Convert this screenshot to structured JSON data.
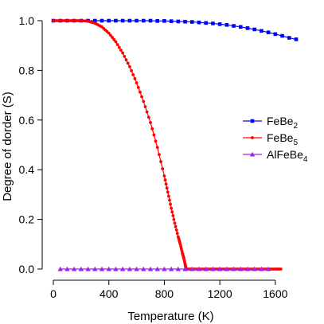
{
  "chart_data": {
    "type": "line",
    "xlabel": "Temperature (K)",
    "ylabel": "Degree of dorder (S)",
    "xlim": [
      0,
      1750
    ],
    "ylim": [
      0,
      1.0
    ],
    "xticks": [
      0,
      400,
      800,
      1200,
      1600
    ],
    "xtick_labels": [
      "0",
      "400",
      "800",
      "1200",
      "1600"
    ],
    "yticks": [
      0,
      0.2,
      0.4,
      0.6,
      0.8,
      1.0
    ],
    "ytick_labels": [
      "0.0",
      "0.2",
      "0.4",
      "0.6",
      "0.8",
      "1.0"
    ],
    "grid": false,
    "legend_position": "right",
    "series": [
      {
        "name": "FeBe",
        "subscript": "2",
        "color": "#0000ff",
        "marker": "square",
        "x": [
          0,
          50,
          100,
          150,
          200,
          250,
          300,
          350,
          400,
          450,
          500,
          550,
          600,
          650,
          700,
          750,
          800,
          850,
          900,
          950,
          1000,
          1050,
          1100,
          1150,
          1200,
          1250,
          1300,
          1350,
          1400,
          1450,
          1500,
          1550,
          1600,
          1650,
          1700,
          1750
        ],
        "y": [
          1.0,
          1.0,
          1.0,
          1.0,
          1.0,
          1.0,
          1.0,
          1.0,
          1.0,
          1.0,
          1.0,
          1.0,
          1.0,
          1.0,
          1.0,
          0.999,
          0.999,
          0.998,
          0.997,
          0.996,
          0.995,
          0.993,
          0.991,
          0.989,
          0.986,
          0.983,
          0.979,
          0.975,
          0.97,
          0.965,
          0.959,
          0.953,
          0.946,
          0.939,
          0.931,
          0.925
        ]
      },
      {
        "name": "FeBe",
        "subscript": "5",
        "color": "#ff0000",
        "marker": "circle",
        "x": [
          0,
          50,
          100,
          150,
          200,
          250,
          300,
          350,
          400,
          450,
          500,
          550,
          600,
          650,
          700,
          750,
          800,
          825,
          850,
          875,
          900,
          915,
          930,
          940,
          950,
          955,
          960,
          1000,
          1050,
          1100,
          1150,
          1200,
          1250,
          1300,
          1350,
          1400,
          1450,
          1500,
          1550,
          1600,
          1640
        ],
        "y": [
          1.0,
          1.0,
          1.0,
          1.0,
          1.0,
          0.998,
          0.99,
          0.975,
          0.95,
          0.915,
          0.87,
          0.815,
          0.75,
          0.675,
          0.59,
          0.49,
          0.375,
          0.31,
          0.245,
          0.185,
          0.13,
          0.1,
          0.065,
          0.045,
          0.02,
          0.005,
          0.0,
          0.0,
          0.0,
          0.0,
          0.0,
          0.0,
          0.0,
          0.0,
          0.0,
          0.0,
          0.0,
          0.0,
          0.0,
          0.0,
          0.0
        ]
      },
      {
        "name": "AlFeBe",
        "subscript": "4",
        "color": "#a020f0",
        "marker": "triangle",
        "x": [
          50,
          100,
          150,
          200,
          250,
          300,
          350,
          400,
          450,
          500,
          550,
          600,
          650,
          700,
          750,
          800,
          850,
          900,
          950,
          1000,
          1050,
          1100,
          1150,
          1200,
          1250,
          1300,
          1350,
          1400,
          1450,
          1500,
          1550
        ],
        "y": [
          0.0,
          0.0,
          0.0,
          0.0,
          0.0,
          0.0,
          0.0,
          0.0,
          0.0,
          0.0,
          0.0,
          0.0,
          0.0,
          0.0,
          0.0,
          0.0,
          0.0,
          0.0,
          0.0,
          0.0,
          0.0,
          0.0,
          0.0,
          0.0,
          0.0,
          0.0,
          0.0,
          0.0,
          0.0,
          0.0,
          0.0
        ]
      }
    ]
  }
}
